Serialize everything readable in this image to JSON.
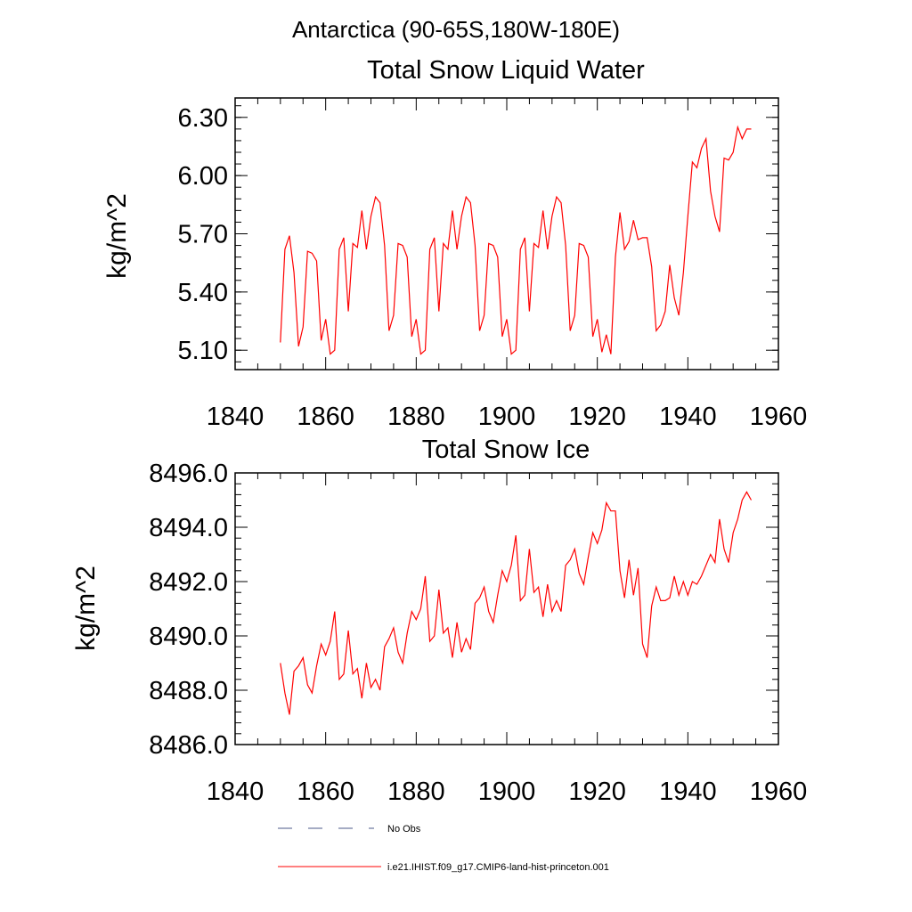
{
  "figure": {
    "title": "Antarctica (90-65S,180W-180E)",
    "line_color": "#ff0000",
    "obs_color": "#4b5a8a"
  },
  "legend": {
    "placement": "bottom",
    "obs_label": "No Obs",
    "model_label": "i.e21.IHIST.f09_g17.CMIP6-land-hist-princeton.001"
  },
  "chart_data": [
    {
      "type": "line",
      "title": "Total Snow Liquid Water",
      "ylabel": "kg/m^2",
      "xlabel": "",
      "xlim": [
        1840,
        1960
      ],
      "ylim": [
        5.0,
        6.4
      ],
      "xticks": [
        "1840",
        "1860",
        "1880",
        "1900",
        "1920",
        "1940",
        "1960"
      ],
      "yticks": [
        "5.10",
        "5.40",
        "5.70",
        "6.00",
        "6.30"
      ],
      "grid": false,
      "series": [
        {
          "name": "i.e21.IHIST.f09_g17.CMIP6-land-hist-princeton.001",
          "x": [
            1850,
            1851,
            1852,
            1853,
            1854,
            1855,
            1856,
            1857,
            1858,
            1859,
            1860,
            1861,
            1862,
            1863,
            1864,
            1865,
            1866,
            1867,
            1868,
            1869,
            1870,
            1871,
            1872,
            1873,
            1874,
            1875,
            1876,
            1877,
            1878,
            1879,
            1880,
            1881,
            1882,
            1883,
            1884,
            1885,
            1886,
            1887,
            1888,
            1889,
            1890,
            1891,
            1892,
            1893,
            1894,
            1895,
            1896,
            1897,
            1898,
            1899,
            1900,
            1901,
            1902,
            1903,
            1904,
            1905,
            1906,
            1907,
            1908,
            1909,
            1910,
            1911,
            1912,
            1913,
            1914,
            1915,
            1916,
            1917,
            1918,
            1919,
            1920,
            1921,
            1922,
            1923,
            1924,
            1925,
            1926,
            1927,
            1928,
            1929,
            1930,
            1931,
            1932,
            1933,
            1934,
            1935,
            1936,
            1937,
            1938,
            1939,
            1940,
            1941,
            1942,
            1943,
            1944,
            1945,
            1946,
            1947,
            1948,
            1949,
            1950,
            1951,
            1952,
            1953,
            1954
          ],
          "y": [
            5.14,
            5.62,
            5.69,
            5.5,
            5.12,
            5.22,
            5.61,
            5.6,
            5.56,
            5.15,
            5.26,
            5.08,
            5.1,
            5.62,
            5.68,
            5.3,
            5.65,
            5.63,
            5.82,
            5.62,
            5.79,
            5.89,
            5.86,
            5.64,
            5.2,
            5.28,
            5.65,
            5.64,
            5.58,
            5.17,
            5.26,
            5.08,
            5.1,
            5.62,
            5.68,
            5.3,
            5.65,
            5.62,
            5.82,
            5.62,
            5.79,
            5.89,
            5.86,
            5.64,
            5.2,
            5.28,
            5.65,
            5.64,
            5.58,
            5.17,
            5.26,
            5.08,
            5.1,
            5.62,
            5.68,
            5.3,
            5.65,
            5.63,
            5.82,
            5.62,
            5.79,
            5.89,
            5.86,
            5.64,
            5.2,
            5.28,
            5.65,
            5.64,
            5.58,
            5.17,
            5.26,
            5.09,
            5.18,
            5.08,
            5.58,
            5.81,
            5.62,
            5.66,
            5.77,
            5.67,
            5.68,
            5.68,
            5.53,
            5.2,
            5.23,
            5.3,
            5.54,
            5.37,
            5.28,
            5.5,
            5.79,
            6.07,
            6.04,
            6.14,
            6.19,
            5.92,
            5.79,
            5.71,
            6.09,
            6.08,
            6.12,
            6.25,
            6.19,
            6.24,
            6.24
          ]
        }
      ]
    },
    {
      "type": "line",
      "title": "Total Snow Ice",
      "ylabel": "kg/m^2",
      "xlabel": "",
      "xlim": [
        1840,
        1960
      ],
      "ylim": [
        8486.0,
        8496.0
      ],
      "xticks": [
        "1840",
        "1860",
        "1880",
        "1900",
        "1920",
        "1940",
        "1960"
      ],
      "yticks": [
        "8486.0",
        "8488.0",
        "8490.0",
        "8492.0",
        "8494.0",
        "8496.0"
      ],
      "grid": false,
      "series": [
        {
          "name": "i.e21.IHIST.f09_g17.CMIP6-land-hist-princeton.001",
          "x": [
            1850,
            1851,
            1852,
            1853,
            1854,
            1855,
            1856,
            1857,
            1858,
            1859,
            1860,
            1861,
            1862,
            1863,
            1864,
            1865,
            1866,
            1867,
            1868,
            1869,
            1870,
            1871,
            1872,
            1873,
            1874,
            1875,
            1876,
            1877,
            1878,
            1879,
            1880,
            1881,
            1882,
            1883,
            1884,
            1885,
            1886,
            1887,
            1888,
            1889,
            1890,
            1891,
            1892,
            1893,
            1894,
            1895,
            1896,
            1897,
            1898,
            1899,
            1900,
            1901,
            1902,
            1903,
            1904,
            1905,
            1906,
            1907,
            1908,
            1909,
            1910,
            1911,
            1912,
            1913,
            1914,
            1915,
            1916,
            1917,
            1918,
            1919,
            1920,
            1921,
            1922,
            1923,
            1924,
            1925,
            1926,
            1927,
            1928,
            1929,
            1930,
            1931,
            1932,
            1933,
            1934,
            1935,
            1936,
            1937,
            1938,
            1939,
            1940,
            1941,
            1942,
            1943,
            1944,
            1945,
            1946,
            1947,
            1948,
            1949,
            1950,
            1951,
            1952,
            1953,
            1954
          ],
          "y": [
            8489.0,
            8487.9,
            8487.1,
            8488.7,
            8488.9,
            8489.2,
            8488.2,
            8487.9,
            8488.9,
            8489.7,
            8489.3,
            8489.8,
            8490.9,
            8488.4,
            8488.6,
            8490.2,
            8488.6,
            8488.8,
            8487.7,
            8489.0,
            8488.1,
            8488.4,
            8488.0,
            8489.6,
            8489.9,
            8490.3,
            8489.4,
            8489.0,
            8490.1,
            8490.9,
            8490.6,
            8491.0,
            8492.2,
            8489.8,
            8490.0,
            8491.7,
            8490.1,
            8490.3,
            8489.2,
            8490.5,
            8489.4,
            8489.9,
            8489.5,
            8491.2,
            8491.4,
            8491.8,
            8490.9,
            8490.5,
            8491.5,
            8492.4,
            8492.0,
            8492.6,
            8493.7,
            8491.3,
            8491.5,
            8493.2,
            8491.6,
            8491.8,
            8490.7,
            8491.9,
            8490.9,
            8491.3,
            8490.9,
            8492.6,
            8492.8,
            8493.2,
            8492.3,
            8491.9,
            8492.9,
            8493.8,
            8493.4,
            8493.9,
            8494.9,
            8494.6,
            8494.6,
            8492.4,
            8491.4,
            8492.8,
            8491.5,
            8492.5,
            8489.7,
            8489.2,
            8491.1,
            8491.8,
            8491.3,
            8491.3,
            8491.4,
            8492.2,
            8491.5,
            8492.0,
            8491.5,
            8492.0,
            8491.9,
            8492.2,
            8492.6,
            8493.0,
            8492.7,
            8494.3,
            8493.2,
            8492.7,
            8493.8,
            8494.3,
            8495.0,
            8495.3,
            8495.0
          ]
        }
      ]
    }
  ]
}
